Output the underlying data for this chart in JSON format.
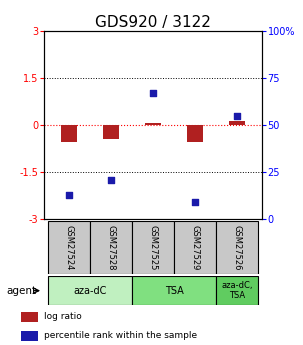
{
  "title": "GDS920 / 3122",
  "samples": [
    "GSM27524",
    "GSM27528",
    "GSM27525",
    "GSM27529",
    "GSM27526"
  ],
  "log_ratio": [
    -0.55,
    -0.45,
    0.08,
    -0.55,
    0.13
  ],
  "percentile": [
    13,
    21,
    67,
    9,
    55
  ],
  "ylim_left": [
    -3,
    3
  ],
  "ylim_right": [
    0,
    100
  ],
  "yticks_left": [
    -3,
    -1.5,
    0,
    1.5,
    3
  ],
  "ytick_labels_left": [
    "-3",
    "-1.5",
    "0",
    "1.5",
    "3"
  ],
  "yticks_right": [
    0,
    25,
    50,
    75,
    100
  ],
  "ytick_labels_right": [
    "0",
    "25",
    "50",
    "75",
    "100%"
  ],
  "bar_color": "#b02020",
  "dot_color": "#1a1aaa",
  "bar_width": 0.4,
  "agent_label": "agent",
  "legend_items": [
    {
      "color": "#b02020",
      "label": "log ratio"
    },
    {
      "color": "#1a1aaa",
      "label": "percentile rank within the sample"
    }
  ],
  "sample_box_color": "#c8c8c8",
  "group_colors": [
    "#c0f0c0",
    "#80e080",
    "#60cc60"
  ],
  "title_fontsize": 11,
  "tick_fontsize": 7,
  "sample_fontsize": 6,
  "legend_fontsize": 6.5
}
